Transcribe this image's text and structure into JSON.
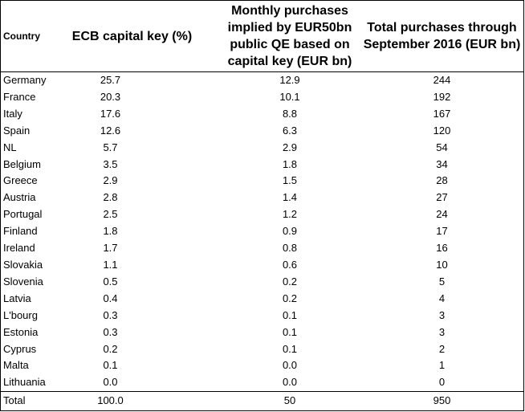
{
  "table": {
    "headers": {
      "country": "Country",
      "capital_key": "ECB capital key (%)",
      "monthly": "Monthly purchases implied by EUR50bn public QE based on capital key (EUR bn)",
      "total": "Total purchases through September 2016 (EUR bn)"
    },
    "rows": [
      {
        "country": "Germany",
        "capital_key": "25.7",
        "monthly": "12.9",
        "total": "244"
      },
      {
        "country": "France",
        "capital_key": "20.3",
        "monthly": "10.1",
        "total": "192"
      },
      {
        "country": "Italy",
        "capital_key": "17.6",
        "monthly": "8.8",
        "total": "167"
      },
      {
        "country": "Spain",
        "capital_key": "12.6",
        "monthly": "6.3",
        "total": "120"
      },
      {
        "country": "NL",
        "capital_key": "5.7",
        "monthly": "2.9",
        "total": "54"
      },
      {
        "country": "Belgium",
        "capital_key": "3.5",
        "monthly": "1.8",
        "total": "34"
      },
      {
        "country": "Greece",
        "capital_key": "2.9",
        "monthly": "1.5",
        "total": "28"
      },
      {
        "country": "Austria",
        "capital_key": "2.8",
        "monthly": "1.4",
        "total": "27"
      },
      {
        "country": "Portugal",
        "capital_key": "2.5",
        "monthly": "1.2",
        "total": "24"
      },
      {
        "country": "Finland",
        "capital_key": "1.8",
        "monthly": "0.9",
        "total": "17"
      },
      {
        "country": "Ireland",
        "capital_key": "1.7",
        "monthly": "0.8",
        "total": "16"
      },
      {
        "country": "Slovakia",
        "capital_key": "1.1",
        "monthly": "0.6",
        "total": "10"
      },
      {
        "country": "Slovenia",
        "capital_key": "0.5",
        "monthly": "0.2",
        "total": "5"
      },
      {
        "country": "Latvia",
        "capital_key": "0.4",
        "monthly": "0.2",
        "total": "4"
      },
      {
        "country": "L'bourg",
        "capital_key": "0.3",
        "monthly": "0.1",
        "total": "3"
      },
      {
        "country": "Estonia",
        "capital_key": "0.3",
        "monthly": "0.1",
        "total": "3"
      },
      {
        "country": "Cyprus",
        "capital_key": "0.2",
        "monthly": "0.1",
        "total": "2"
      },
      {
        "country": "Malta",
        "capital_key": "0.1",
        "monthly": "0.0",
        "total": "1"
      },
      {
        "country": "Lithuania",
        "capital_key": "0.0",
        "monthly": "0.0",
        "total": "0"
      }
    ],
    "total": {
      "country": "Total",
      "capital_key": "100.0",
      "monthly": "50",
      "total": "950"
    }
  }
}
